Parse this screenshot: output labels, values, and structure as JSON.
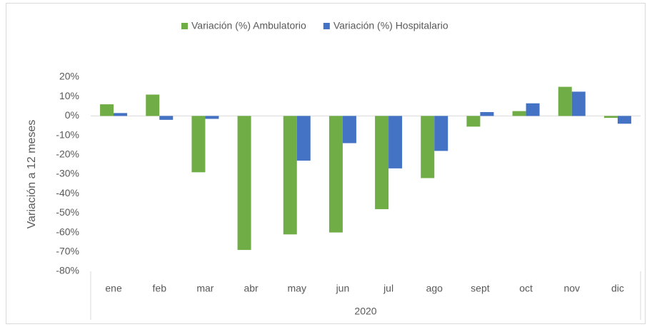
{
  "chart_data": {
    "type": "bar",
    "y_axis_label": "Variación a 12 meses",
    "x_group_label": "2020",
    "categories": [
      "ene",
      "feb",
      "mar",
      "abr",
      "may",
      "jun",
      "jul",
      "ago",
      "sept",
      "oct",
      "nov",
      "dic"
    ],
    "series": [
      {
        "name": "Variación (%) Ambulatorio",
        "color": "#70ad47",
        "values": [
          6,
          11,
          -29,
          -69,
          -61,
          -60,
          -48,
          -32,
          -5.5,
          2.5,
          15,
          -1
        ]
      },
      {
        "name": "Variación (%) Hospitalario",
        "color": "#4472c4",
        "values": [
          1.5,
          -2,
          -1.5,
          null,
          -23,
          -14,
          -27,
          -18,
          2,
          6.5,
          12.5,
          -4
        ]
      }
    ],
    "ylim": [
      -80,
      20
    ],
    "yticks": [
      {
        "value": 20,
        "label": "20%"
      },
      {
        "value": 10,
        "label": "10%"
      },
      {
        "value": 0,
        "label": "0%"
      },
      {
        "value": -10,
        "label": "-10%"
      },
      {
        "value": -20,
        "label": "-20%"
      },
      {
        "value": -30,
        "label": "-30%"
      },
      {
        "value": -40,
        "label": "-40%"
      },
      {
        "value": -50,
        "label": "-50%"
      },
      {
        "value": -60,
        "label": "-60%"
      },
      {
        "value": -70,
        "label": "-70%"
      },
      {
        "value": -80,
        "label": "-80%"
      }
    ],
    "grid": false,
    "legend": "top"
  }
}
